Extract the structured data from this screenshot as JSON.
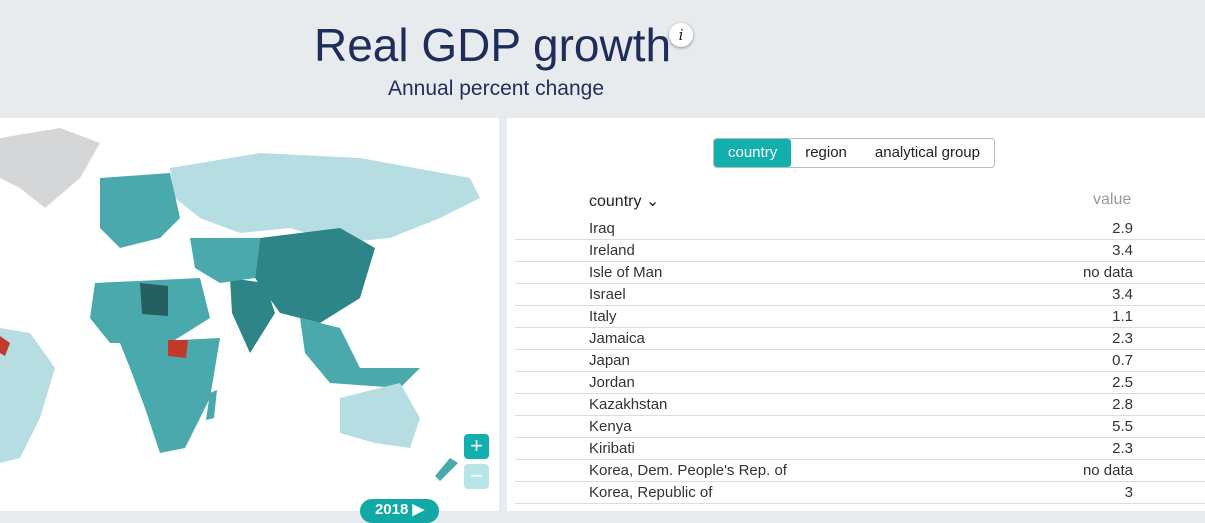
{
  "header": {
    "title": "Real GDP growth",
    "subtitle": "Annual percent change",
    "info": "i"
  },
  "tabs": [
    {
      "label": "country",
      "active": true
    },
    {
      "label": "region"
    },
    {
      "label": "analytical group"
    }
  ],
  "table": {
    "col_country": "country",
    "col_value": "value",
    "rows": [
      {
        "country": "Iraq",
        "value": "2.9"
      },
      {
        "country": "Ireland",
        "value": "3.4"
      },
      {
        "country": "Isle of Man",
        "value": "no data"
      },
      {
        "country": "Israel",
        "value": "3.4"
      },
      {
        "country": "Italy",
        "value": "1.1"
      },
      {
        "country": "Jamaica",
        "value": "2.3"
      },
      {
        "country": "Japan",
        "value": "0.7"
      },
      {
        "country": "Jordan",
        "value": "2.5"
      },
      {
        "country": "Kazakhstan",
        "value": "2.8"
      },
      {
        "country": "Kenya",
        "value": "5.5"
      },
      {
        "country": "Kiribati",
        "value": "2.3"
      },
      {
        "country": "Korea, Dem. People's Rep. of",
        "value": "no data"
      },
      {
        "country": "Korea, Republic of",
        "value": "3"
      }
    ]
  },
  "map": {
    "zoom_in": "+",
    "zoom_out": "−",
    "year": "2018 ▶"
  },
  "colors": {
    "accent": "#11b0ad",
    "light": "#b5dde2",
    "mid": "#4aa9ad",
    "dark": "#2d8587",
    "darkest": "#255f5f",
    "negative": "#c0392b",
    "nodata": "#d4d6d8"
  }
}
